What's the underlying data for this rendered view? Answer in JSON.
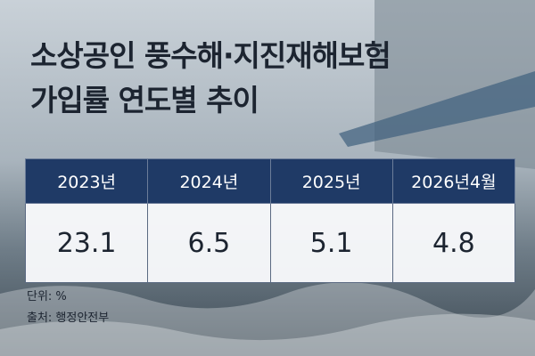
{
  "header": {
    "title_lines": [
      "소상공인 풍수해·지진재해보험",
      "가입률 연도별 추이"
    ]
  },
  "table": {
    "columns": [
      "2023년",
      "2024년",
      "2025년",
      "2026년4월"
    ],
    "rows": [
      [
        23.1,
        6.5,
        5.1,
        4.8
      ]
    ]
  },
  "notes": [
    "단위: %",
    "출처: 행정안전부"
  ]
}
